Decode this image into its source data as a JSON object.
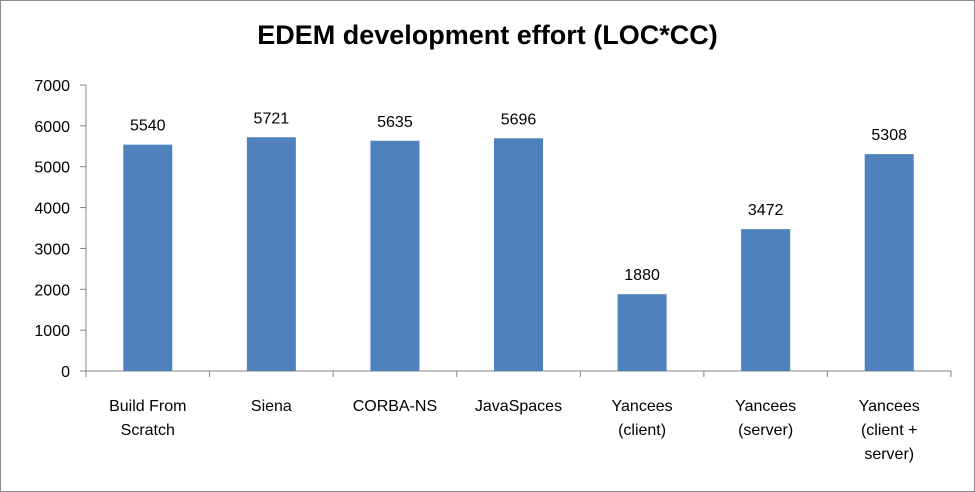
{
  "chart_data": {
    "type": "bar",
    "title": "EDEM development effort (LOC*CC)",
    "xlabel": "",
    "ylabel": "",
    "categories": [
      [
        "Build From",
        "Scratch"
      ],
      [
        "Siena"
      ],
      [
        "CORBA-NS"
      ],
      [
        "JavaSpaces"
      ],
      [
        "Yancees",
        "(client)"
      ],
      [
        "Yancees",
        "(server)"
      ],
      [
        "Yancees",
        "(client +",
        "server)"
      ]
    ],
    "values": [
      5540,
      5721,
      5635,
      5696,
      1880,
      3472,
      5308
    ],
    "ylim": [
      0,
      7000
    ],
    "yticks": [
      0,
      1000,
      2000,
      3000,
      4000,
      5000,
      6000,
      7000
    ],
    "grid": false,
    "legend": "none",
    "bar_color": "#4F81BD",
    "axis_color": "#868686"
  }
}
